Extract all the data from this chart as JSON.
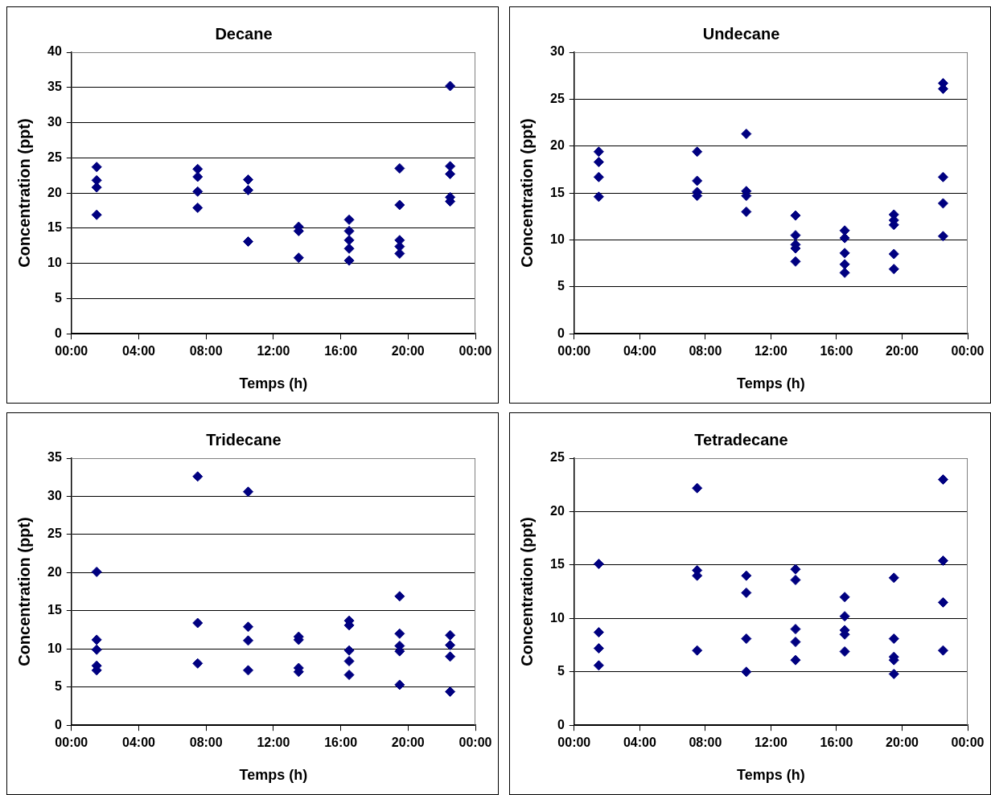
{
  "chart_data": [
    {
      "type": "scatter",
      "title": "Decane",
      "xlabel": "Temps (h)",
      "ylabel": "Concentration (ppt)",
      "color": "#000080",
      "marker": "diamond",
      "grid": "y",
      "legend": false,
      "xlim": [
        0,
        24
      ],
      "ylim": [
        0,
        40
      ],
      "yticks": [
        0,
        5,
        10,
        15,
        20,
        25,
        30,
        35,
        40
      ],
      "xticks": [
        {
          "value": 0,
          "label": "00:00"
        },
        {
          "value": 4,
          "label": "04:00"
        },
        {
          "value": 8,
          "label": "08:00"
        },
        {
          "value": 12,
          "label": "12:00"
        },
        {
          "value": 16,
          "label": "16:00"
        },
        {
          "value": 20,
          "label": "20:00"
        },
        {
          "value": 24,
          "label": "00:00"
        }
      ],
      "x": [
        1.5,
        1.5,
        1.5,
        1.5,
        7.5,
        7.5,
        7.5,
        7.5,
        10.5,
        10.5,
        10.5,
        13.5,
        13.5,
        13.5,
        16.5,
        16.5,
        16.5,
        16.5,
        16.5,
        19.5,
        19.5,
        19.5,
        19.5,
        19.5,
        22.5,
        22.5,
        22.5,
        22.5,
        22.5
      ],
      "values": [
        23.7,
        21.8,
        20.8,
        16.9,
        23.4,
        22.3,
        20.2,
        17.9,
        21.9,
        20.4,
        13.1,
        15.2,
        14.6,
        10.8,
        16.2,
        14.6,
        13.3,
        12.1,
        10.4,
        23.5,
        18.3,
        13.3,
        12.4,
        11.4,
        35.2,
        23.8,
        22.7,
        19.4,
        18.8
      ]
    },
    {
      "type": "scatter",
      "title": "Undecane",
      "xlabel": "Temps (h)",
      "ylabel": "Concentration (ppt)",
      "color": "#000080",
      "marker": "diamond",
      "grid": "y",
      "legend": false,
      "xlim": [
        0,
        24
      ],
      "ylim": [
        0,
        30
      ],
      "yticks": [
        0,
        5,
        10,
        15,
        20,
        25,
        30
      ],
      "xticks": [
        {
          "value": 0,
          "label": "00:00"
        },
        {
          "value": 4,
          "label": "04:00"
        },
        {
          "value": 8,
          "label": "08:00"
        },
        {
          "value": 12,
          "label": "12:00"
        },
        {
          "value": 16,
          "label": "16:00"
        },
        {
          "value": 20,
          "label": "20:00"
        },
        {
          "value": 24,
          "label": "00:00"
        }
      ],
      "x": [
        1.5,
        1.5,
        1.5,
        1.5,
        7.5,
        7.5,
        7.5,
        7.5,
        10.5,
        10.5,
        10.5,
        10.5,
        13.5,
        13.5,
        13.5,
        13.5,
        13.5,
        16.5,
        16.5,
        16.5,
        16.5,
        16.5,
        19.5,
        19.5,
        19.5,
        19.5,
        19.5,
        22.5,
        22.5,
        22.5,
        22.5,
        22.5
      ],
      "values": [
        19.4,
        18.3,
        16.7,
        14.6,
        19.4,
        16.3,
        15.1,
        14.7,
        21.3,
        15.2,
        14.7,
        13.0,
        12.6,
        10.5,
        9.5,
        9.1,
        7.7,
        11.0,
        10.2,
        8.6,
        7.4,
        6.5,
        12.7,
        12.1,
        11.6,
        8.5,
        6.9,
        26.7,
        26.1,
        16.7,
        13.9,
        10.4
      ]
    },
    {
      "type": "scatter",
      "title": "Tridecane",
      "xlabel": "Temps (h)",
      "ylabel": "Concentration (ppt)",
      "color": "#000080",
      "marker": "diamond",
      "grid": "y",
      "legend": false,
      "xlim": [
        0,
        24
      ],
      "ylim": [
        0,
        35
      ],
      "yticks": [
        0,
        5,
        10,
        15,
        20,
        25,
        30,
        35
      ],
      "xticks": [
        {
          "value": 0,
          "label": "00:00"
        },
        {
          "value": 4,
          "label": "04:00"
        },
        {
          "value": 8,
          "label": "08:00"
        },
        {
          "value": 12,
          "label": "12:00"
        },
        {
          "value": 16,
          "label": "16:00"
        },
        {
          "value": 20,
          "label": "20:00"
        },
        {
          "value": 24,
          "label": "00:00"
        }
      ],
      "x": [
        1.5,
        1.5,
        1.5,
        1.5,
        1.5,
        7.5,
        7.5,
        7.5,
        10.5,
        10.5,
        10.5,
        10.5,
        13.5,
        13.5,
        13.5,
        13.5,
        16.5,
        16.5,
        16.5,
        16.5,
        16.5,
        19.5,
        19.5,
        19.5,
        19.5,
        19.5,
        22.5,
        22.5,
        22.5,
        22.5
      ],
      "values": [
        20.1,
        11.2,
        9.9,
        7.8,
        7.2,
        32.6,
        13.4,
        8.1,
        30.6,
        12.9,
        11.1,
        7.2,
        11.6,
        11.2,
        7.5,
        7.0,
        13.7,
        13.1,
        9.8,
        8.4,
        6.6,
        16.9,
        12.0,
        10.4,
        9.7,
        5.3,
        11.8,
        10.5,
        9.0,
        4.4
      ]
    },
    {
      "type": "scatter",
      "title": "Tetradecane",
      "xlabel": "Temps (h)",
      "ylabel": "Concentration (ppt)",
      "color": "#000080",
      "marker": "diamond",
      "grid": "y",
      "legend": false,
      "xlim": [
        0,
        24
      ],
      "ylim": [
        0,
        25
      ],
      "yticks": [
        0,
        5,
        10,
        15,
        20,
        25
      ],
      "xticks": [
        {
          "value": 0,
          "label": "00:00"
        },
        {
          "value": 4,
          "label": "04:00"
        },
        {
          "value": 8,
          "label": "08:00"
        },
        {
          "value": 12,
          "label": "12:00"
        },
        {
          "value": 16,
          "label": "16:00"
        },
        {
          "value": 20,
          "label": "20:00"
        },
        {
          "value": 24,
          "label": "00:00"
        }
      ],
      "x": [
        1.5,
        1.5,
        1.5,
        1.5,
        7.5,
        7.5,
        7.5,
        7.5,
        10.5,
        10.5,
        10.5,
        10.5,
        13.5,
        13.5,
        13.5,
        13.5,
        13.5,
        16.5,
        16.5,
        16.5,
        16.5,
        16.5,
        19.5,
        19.5,
        19.5,
        19.5,
        19.5,
        22.5,
        22.5,
        22.5,
        22.5
      ],
      "values": [
        15.1,
        8.7,
        7.2,
        5.6,
        22.2,
        14.5,
        14.0,
        7.0,
        14.0,
        12.4,
        8.1,
        5.0,
        14.6,
        13.6,
        9.0,
        7.8,
        6.1,
        12.0,
        10.2,
        8.9,
        8.5,
        6.9,
        13.8,
        8.1,
        6.4,
        6.1,
        4.8,
        23.0,
        15.4,
        11.5,
        7.0
      ]
    }
  ]
}
